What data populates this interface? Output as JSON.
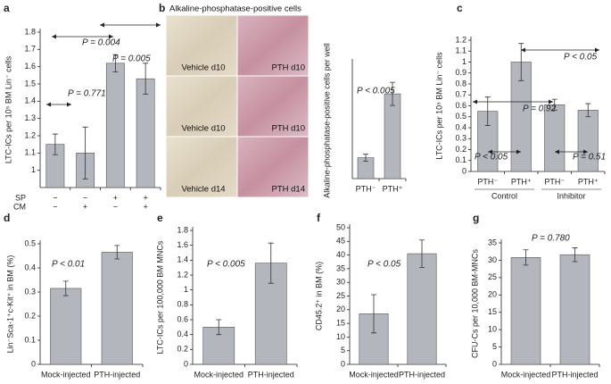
{
  "chart_data": [
    {
      "type": "bar",
      "panel": "a",
      "ylabel": "LTC-ICs per 10⁵ BM Lin⁻ cells",
      "category_rows": [
        {
          "name": "SP",
          "labels": [
            "−",
            "−",
            "+",
            "+"
          ]
        },
        {
          "name": "CM",
          "labels": [
            "−",
            "+",
            "−",
            "+"
          ]
        }
      ],
      "values": [
        1.15,
        1.1,
        1.62,
        1.53
      ],
      "errors": [
        0.06,
        0.15,
        0.05,
        0.09
      ],
      "ylim": [
        0.9,
        1.8
      ],
      "yticks": [
        1,
        1.1,
        1.2,
        1.3,
        1.4,
        1.5,
        1.6,
        1.7,
        1.8
      ],
      "annotations": [
        "P = 0.771",
        "P = 0.004",
        "P = 0.005"
      ],
      "color": "#b3b7bd"
    },
    {
      "type": "bar",
      "panel": "b",
      "ylabel": "Alkaline-phosphatase-positive cells per well",
      "categories": [
        "PTH⁻",
        "PTH⁺"
      ],
      "values": [
        90,
        365
      ],
      "errors": [
        15,
        50
      ],
      "ylim": [
        0,
        500
      ],
      "annotations": [
        "P < 0.005"
      ],
      "color": "#b3b7bd"
    },
    {
      "type": "bar",
      "panel": "c",
      "ylabel": "LTC-ICs per 10⁵ BM Lin⁻ cells",
      "categories": [
        "PTH⁻",
        "PTH⁺",
        "PTH⁻",
        "PTH⁺"
      ],
      "groups": [
        "Control",
        "Inhibitor"
      ],
      "values": [
        0.55,
        1.0,
        0.61,
        0.56
      ],
      "errors": [
        0.13,
        0.17,
        0.05,
        0.06
      ],
      "ylim": [
        0,
        1.2
      ],
      "yticks": [
        0,
        0.1,
        0.2,
        0.3,
        0.4,
        0.5,
        0.6,
        0.7,
        0.8,
        0.9,
        1,
        1.1,
        1.2
      ],
      "annotations": [
        "P < 0.05",
        "P = 0.92",
        "P < 0.05",
        "P = 0.51"
      ],
      "color": "#b3b7bd"
    },
    {
      "type": "bar",
      "panel": "d",
      "ylabel": "Lin⁻Sca-1⁺c-Kit⁺ in BM (%)",
      "categories": [
        "Mock-injected",
        "PTH-injected"
      ],
      "values": [
        0.315,
        0.465
      ],
      "errors": [
        0.03,
        0.028
      ],
      "ylim": [
        0,
        0.5
      ],
      "yticks": [
        0,
        0.1,
        0.2,
        0.3,
        0.4,
        0.5
      ],
      "annotations": [
        "P < 0.01"
      ],
      "color": "#b3b7bd"
    },
    {
      "type": "bar",
      "panel": "e",
      "ylabel": "LTC-ICs per 100,000 BM MNCs",
      "categories": [
        "Mock-injected",
        "PTH-injected"
      ],
      "values": [
        0.5,
        1.36
      ],
      "errors": [
        0.1,
        0.27
      ],
      "ylim": [
        0,
        1.8
      ],
      "yticks": [
        0,
        0.2,
        0.4,
        0.6,
        0.8,
        1,
        1.2,
        1.4,
        1.6,
        1.8
      ],
      "annotations": [
        "P < 0.005"
      ],
      "color": "#b3b7bd"
    },
    {
      "type": "bar",
      "panel": "f",
      "ylabel": "CD45.2⁺ in BM (%)",
      "categories": [
        "Mock-injected",
        "PTH-injected"
      ],
      "values": [
        18.5,
        40.5
      ],
      "errors": [
        7,
        5
      ],
      "ylim": [
        0,
        50
      ],
      "yticks": [
        0,
        5,
        10,
        15,
        20,
        25,
        30,
        35,
        40,
        45,
        50
      ],
      "annotations": [
        "P < 0.05"
      ],
      "color": "#b3b7bd"
    },
    {
      "type": "bar",
      "panel": "g",
      "ylabel": "CFU-Cs per 10,000 BM-MNCs",
      "categories": [
        "Mock-injected",
        "PTH-injected"
      ],
      "values": [
        30.8,
        31.6
      ],
      "errors": [
        2.2,
        2
      ],
      "ylim": [
        0,
        35
      ],
      "yticks": [
        0,
        5,
        10,
        15,
        20,
        25,
        30,
        35
      ],
      "annotations": [
        "P = 0.780"
      ],
      "color": "#b3b7bd"
    }
  ],
  "micrographs": {
    "title": "Alkaline-phosphatase-positive cells",
    "labels": [
      "Vehicle d10",
      "PTH d10",
      "Vehicle d10",
      "PTH d10",
      "Vehicle d14",
      "PTH d14"
    ]
  }
}
